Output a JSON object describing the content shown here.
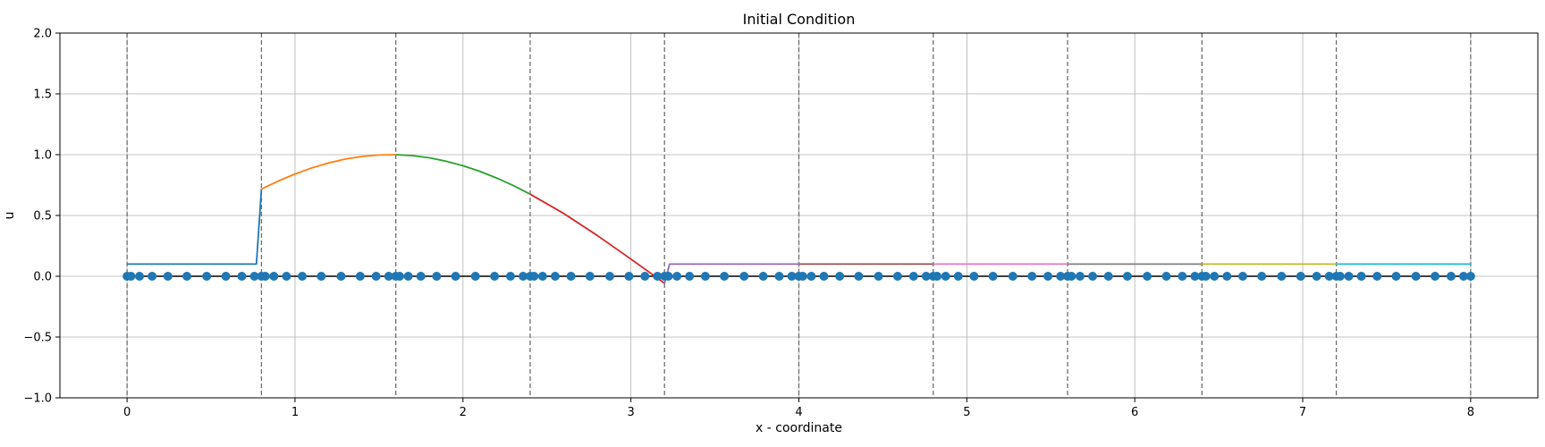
{
  "chart_data": {
    "type": "line",
    "title": "Initial Condition",
    "xlabel": "x - coordinate",
    "ylabel": "u",
    "xlim": [
      -0.4,
      8.4
    ],
    "ylim": [
      -1.0,
      2.0
    ],
    "x_ticks": [
      0,
      1,
      2,
      3,
      4,
      5,
      6,
      7,
      8
    ],
    "x_tick_labels": [
      "0",
      "1",
      "2",
      "3",
      "4",
      "5",
      "6",
      "7",
      "8"
    ],
    "y_ticks": [
      -1.0,
      -0.5,
      0.0,
      0.5,
      1.0,
      1.5,
      2.0
    ],
    "y_tick_labels": [
      "−1.0",
      "−0.5",
      "0.0",
      "0.5",
      "1.0",
      "1.5",
      "2.0"
    ],
    "grid": true,
    "element_boundaries": [
      0,
      0.8,
      1.6,
      2.4,
      3.2,
      4.0,
      4.8,
      5.6,
      6.4,
      7.2,
      8.0
    ],
    "baseline": {
      "y": 0.0,
      "color": "#000000"
    },
    "series": [
      {
        "color": "#1f77b4",
        "x": [
          0.0,
          0.77,
          0.8
        ],
        "y": [
          0.1,
          0.1,
          0.717
        ]
      },
      {
        "color": "#ff7f0e",
        "x": [
          0.8,
          0.9,
          1.0,
          1.1,
          1.2,
          1.3,
          1.4,
          1.5,
          1.6
        ],
        "y": [
          0.717,
          0.783,
          0.841,
          0.891,
          0.932,
          0.964,
          0.985,
          0.997,
          1.0
        ]
      },
      {
        "color": "#2ca02c",
        "x": [
          1.6,
          1.7,
          1.8,
          1.9,
          2.0,
          2.1,
          2.2,
          2.3,
          2.4
        ],
        "y": [
          1.0,
          0.992,
          0.974,
          0.946,
          0.909,
          0.863,
          0.808,
          0.746,
          0.675
        ]
      },
      {
        "color": "#d62728",
        "x": [
          2.4,
          2.6,
          2.8,
          3.0,
          3.1,
          3.2
        ],
        "y": [
          0.675,
          0.516,
          0.335,
          0.141,
          0.042,
          -0.058
        ]
      },
      {
        "color": "#9467bd",
        "x": [
          3.2,
          3.23,
          4.0
        ],
        "y": [
          -0.058,
          0.1,
          0.1
        ]
      },
      {
        "color": "#8c564b",
        "x": [
          4.0,
          4.8
        ],
        "y": [
          0.1,
          0.1
        ]
      },
      {
        "color": "#e377c2",
        "x": [
          4.8,
          5.6
        ],
        "y": [
          0.1,
          0.1
        ]
      },
      {
        "color": "#7f7f7f",
        "x": [
          5.6,
          6.4
        ],
        "y": [
          0.1,
          0.1
        ]
      },
      {
        "color": "#bcbd22",
        "x": [
          6.4,
          7.2
        ],
        "y": [
          0.1,
          0.1
        ]
      },
      {
        "color": "#17becf",
        "x": [
          7.2,
          8.0
        ],
        "y": [
          0.1,
          0.1
        ]
      }
    ],
    "nodes": {
      "color": "#1f77b4",
      "y": 0.0,
      "x": [
        0.0,
        0.023,
        0.074,
        0.149,
        0.243,
        0.356,
        0.474,
        0.588,
        0.683,
        0.758,
        0.8,
        0.823,
        0.874,
        0.949,
        1.043,
        1.156,
        1.274,
        1.388,
        1.483,
        1.558,
        1.6,
        1.623,
        1.674,
        1.749,
        1.843,
        1.956,
        2.074,
        2.188,
        2.283,
        2.358,
        2.4,
        2.423,
        2.474,
        2.549,
        2.643,
        2.756,
        2.874,
        2.988,
        3.083,
        3.158,
        3.2,
        3.223,
        3.274,
        3.349,
        3.443,
        3.556,
        3.674,
        3.788,
        3.883,
        3.958,
        4.0,
        4.023,
        4.074,
        4.149,
        4.243,
        4.356,
        4.474,
        4.588,
        4.683,
        4.758,
        4.8,
        4.823,
        4.874,
        4.949,
        5.043,
        5.156,
        5.274,
        5.388,
        5.483,
        5.558,
        5.6,
        5.623,
        5.674,
        5.749,
        5.843,
        5.956,
        6.074,
        6.188,
        6.283,
        6.358,
        6.4,
        6.423,
        6.474,
        6.549,
        6.643,
        6.756,
        6.874,
        6.988,
        7.083,
        7.158,
        7.2,
        7.223,
        7.274,
        7.349,
        7.443,
        7.556,
        7.674,
        7.788,
        7.883,
        7.958,
        8.0
      ]
    }
  }
}
